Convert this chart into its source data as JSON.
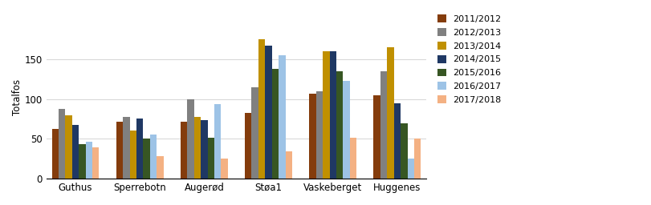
{
  "categories": [
    "Guthus",
    "Sperrebotn",
    "Augerød",
    "Støa1",
    "Vaskeberget",
    "Huggenes"
  ],
  "series": [
    {
      "label": "2011/2012",
      "color": "#843C0C",
      "values": [
        62,
        72,
        72,
        83,
        107,
        105
      ]
    },
    {
      "label": "2012/2013",
      "color": "#808080",
      "values": [
        88,
        78,
        100,
        115,
        110,
        135
      ]
    },
    {
      "label": "2013/2014",
      "color": "#C09000",
      "values": [
        80,
        60,
        78,
        175,
        160,
        165
      ]
    },
    {
      "label": "2014/2015",
      "color": "#1F3864",
      "values": [
        68,
        76,
        74,
        167,
        160,
        95
      ]
    },
    {
      "label": "2015/2016",
      "color": "#375623",
      "values": [
        43,
        50,
        51,
        138,
        135,
        70
      ]
    },
    {
      "label": "2016/2017",
      "color": "#9DC3E6",
      "values": [
        46,
        55,
        94,
        155,
        123,
        25
      ]
    },
    {
      "label": "2017/2018",
      "color": "#F4B183",
      "values": [
        39,
        28,
        25,
        34,
        51,
        50
      ]
    }
  ],
  "ylabel": "Totalfos",
  "ylim": [
    0,
    205
  ],
  "yticks": [
    0,
    50,
    100,
    150
  ],
  "background_color": "#FFFFFF",
  "grid_color": "#D9D9D9"
}
